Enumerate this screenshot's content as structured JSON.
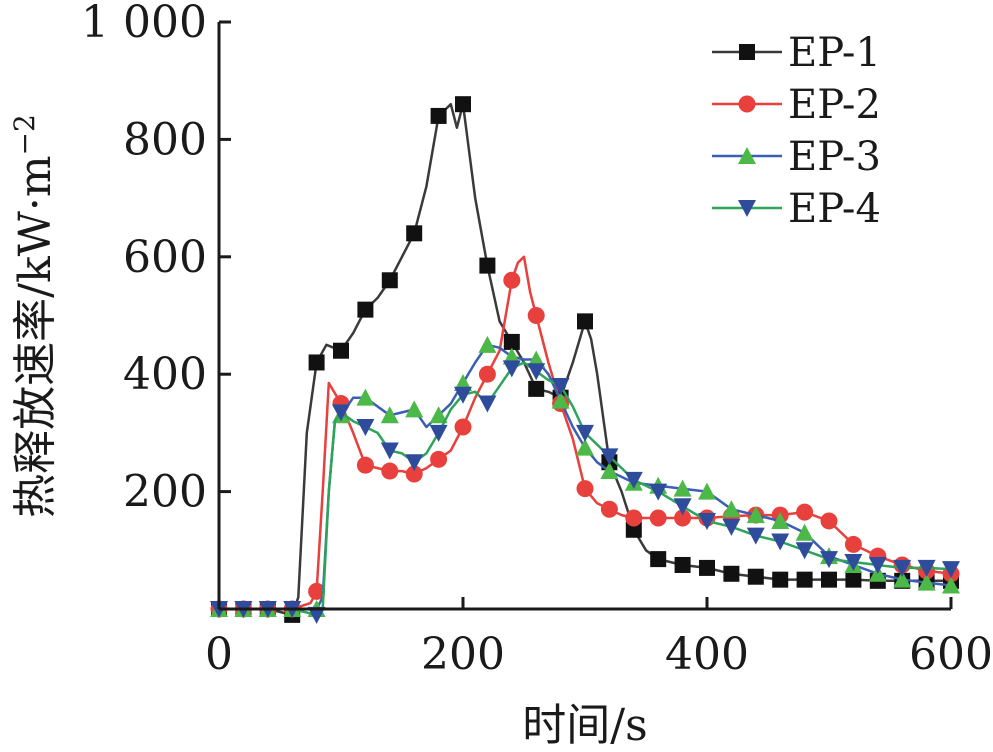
{
  "chart_data": {
    "type": "line",
    "xlabel": "时间/s",
    "ylabel": "热释放速率/kW·m",
    "ylabel_sup": "−2",
    "xlim": [
      0,
      600
    ],
    "ylim": [
      0,
      1000
    ],
    "xticks": [
      0,
      200,
      400,
      600
    ],
    "xtick_labels": [
      "0",
      "200",
      "400",
      "600"
    ],
    "yticks": [
      200,
      400,
      600,
      800,
      1000
    ],
    "ytick_labels": [
      "200",
      "400",
      "600",
      "800",
      "1 000"
    ],
    "grid": false,
    "legend_position": "top-right",
    "series": [
      {
        "name": "EP-1",
        "color": "#3a3a3a",
        "marker": "square",
        "marker_color": "#111111",
        "x": [
          0,
          20,
          40,
          60,
          65,
          72,
          80,
          88,
          100,
          110,
          120,
          130,
          140,
          150,
          160,
          170,
          180,
          185,
          190,
          195,
          200,
          205,
          210,
          220,
          230,
          240,
          250,
          260,
          270,
          280,
          290,
          300,
          305,
          310,
          320,
          330,
          340,
          350,
          360,
          380,
          400,
          420,
          440,
          460,
          480,
          500,
          520,
          540,
          560,
          580,
          600
        ],
        "y": [
          0,
          0,
          0,
          -10,
          20,
          300,
          420,
          450,
          440,
          470,
          510,
          530,
          560,
          600,
          640,
          720,
          840,
          850,
          860,
          820,
          860,
          780,
          700,
          585,
          490,
          455,
          420,
          375,
          370,
          360,
          420,
          490,
          460,
          400,
          250,
          200,
          135,
          100,
          85,
          75,
          70,
          60,
          55,
          50,
          50,
          50,
          50,
          48,
          48,
          48,
          48
        ]
      },
      {
        "name": "EP-2",
        "color": "#e8403c",
        "marker": "circle",
        "marker_color": "#e8403c",
        "x": [
          0,
          20,
          40,
          60,
          75,
          80,
          85,
          90,
          100,
          110,
          120,
          130,
          140,
          150,
          160,
          170,
          180,
          190,
          200,
          210,
          220,
          230,
          240,
          245,
          250,
          255,
          260,
          270,
          280,
          290,
          300,
          310,
          320,
          330,
          340,
          360,
          380,
          400,
          420,
          440,
          460,
          480,
          500,
          520,
          540,
          560,
          580,
          600
        ],
        "y": [
          0,
          0,
          0,
          0,
          10,
          30,
          200,
          385,
          350,
          300,
          245,
          240,
          235,
          235,
          230,
          240,
          255,
          270,
          310,
          360,
          400,
          440,
          560,
          590,
          600,
          540,
          500,
          420,
          350,
          290,
          205,
          180,
          170,
          160,
          155,
          155,
          155,
          155,
          158,
          160,
          160,
          165,
          150,
          110,
          90,
          75,
          65,
          60
        ]
      },
      {
        "name": "EP-3",
        "color": "#3a5fb5",
        "marker": "triangle-up",
        "marker_color": "#4cb848",
        "x": [
          0,
          20,
          40,
          60,
          80,
          85,
          90,
          95,
          100,
          110,
          120,
          130,
          140,
          150,
          160,
          170,
          180,
          190,
          200,
          210,
          220,
          230,
          240,
          250,
          260,
          270,
          280,
          290,
          300,
          310,
          320,
          330,
          340,
          360,
          380,
          400,
          420,
          440,
          460,
          480,
          500,
          520,
          540,
          560,
          580,
          600
        ],
        "y": [
          0,
          0,
          0,
          0,
          0,
          20,
          200,
          320,
          330,
          360,
          360,
          345,
          330,
          335,
          340,
          310,
          330,
          350,
          385,
          420,
          450,
          445,
          430,
          425,
          425,
          400,
          355,
          310,
          275,
          250,
          235,
          225,
          215,
          210,
          205,
          200,
          170,
          160,
          150,
          130,
          90,
          75,
          60,
          50,
          45,
          40
        ]
      },
      {
        "name": "EP-4",
        "color": "#2fa35a",
        "marker": "triangle-down",
        "marker_color": "#2f4c9c",
        "x": [
          0,
          20,
          40,
          60,
          80,
          85,
          90,
          95,
          100,
          110,
          120,
          130,
          140,
          150,
          160,
          170,
          180,
          190,
          200,
          210,
          220,
          230,
          240,
          250,
          260,
          270,
          280,
          290,
          300,
          310,
          320,
          330,
          340,
          360,
          380,
          400,
          420,
          440,
          460,
          480,
          500,
          520,
          540,
          560,
          580,
          600
        ],
        "y": [
          0,
          0,
          0,
          0,
          -10,
          0,
          200,
          320,
          335,
          320,
          310,
          300,
          270,
          265,
          250,
          265,
          300,
          340,
          365,
          370,
          350,
          380,
          410,
          420,
          405,
          390,
          380,
          345,
          300,
          280,
          260,
          240,
          220,
          200,
          175,
          150,
          140,
          125,
          115,
          100,
          85,
          80,
          75,
          70,
          70,
          68
        ]
      }
    ]
  }
}
